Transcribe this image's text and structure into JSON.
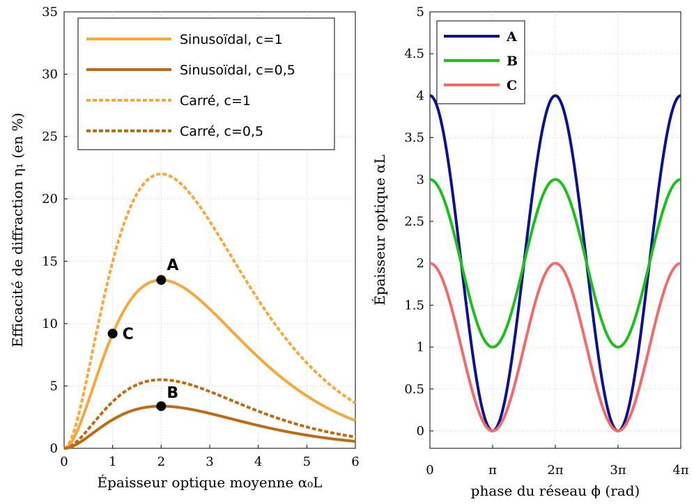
{
  "chart_data": [
    {
      "type": "line",
      "xlabel": "Épaisseur optique moyenne α₀L",
      "ylabel": "Efficacité de diffraction η₁ (en %)",
      "xlim": [
        0,
        6
      ],
      "ylim": [
        0,
        35
      ],
      "xticks": [
        "0",
        "1",
        "2",
        "3",
        "4",
        "5",
        "6"
      ],
      "yticks": [
        "0",
        "5",
        "10",
        "15",
        "20",
        "25",
        "30",
        "35"
      ],
      "grid": true,
      "legend_position": "top",
      "series": [
        {
          "name": "Sinusoïdal, c=1",
          "color": "#f7a73b",
          "dash": "solid",
          "peak": 13.5
        },
        {
          "name": "Sinusoïdal, c=0,5",
          "color": "#c06a10",
          "dash": "solid",
          "peak": 3.38
        },
        {
          "name": "Carré, c=1",
          "color": "#f7a73b",
          "dash": "dashed",
          "peak": 22.0
        },
        {
          "name": "Carré, c=0,5",
          "color": "#c06a10",
          "dash": "dashed",
          "peak": 5.5
        }
      ],
      "points": [
        {
          "label": "A",
          "x": 2,
          "y": 13.5
        },
        {
          "label": "B",
          "x": 2,
          "y": 3.38
        },
        {
          "label": "C",
          "x": 1,
          "y": 9.2
        }
      ]
    },
    {
      "type": "line",
      "xlabel": "phase du réseau ϕ (rad)",
      "ylabel": "Épaisseur optique αL",
      "xlim": [
        0,
        12.566
      ],
      "ylim": [
        0,
        5
      ],
      "xticks": [
        "0",
        "π",
        "2π",
        "3π",
        "4π"
      ],
      "yticks": [
        "0",
        "0.5",
        "1",
        "1.5",
        "2",
        "2.5",
        "3",
        "3.5",
        "4",
        "4.5",
        "5"
      ],
      "grid": true,
      "legend_position": "top-left",
      "series": [
        {
          "name": "A",
          "color": "#0a128c",
          "mean": 2,
          "amplitude": 2
        },
        {
          "name": "B",
          "color": "#1cbf1c",
          "mean": 2,
          "amplitude": 1
        },
        {
          "name": "C",
          "color": "#f26a6a",
          "mean": 1,
          "amplitude": 1
        }
      ]
    }
  ]
}
